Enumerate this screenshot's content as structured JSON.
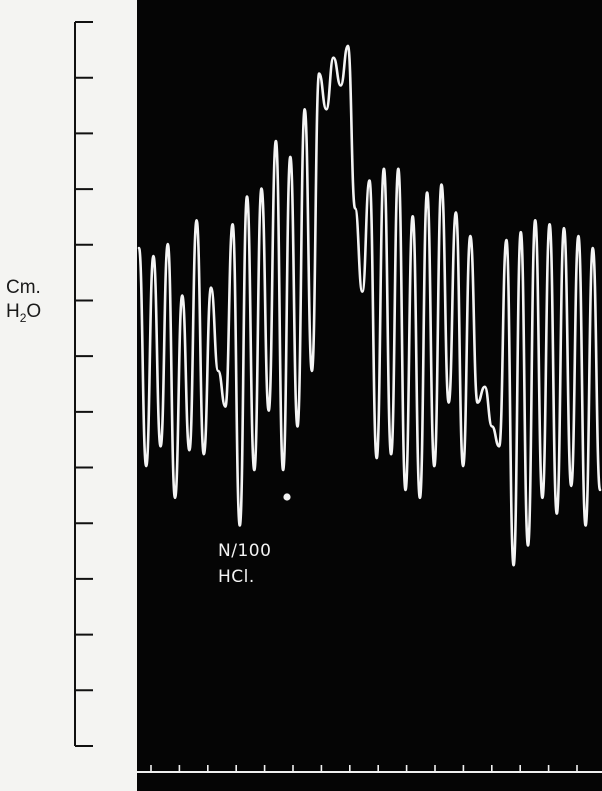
{
  "chart_data": {
    "type": "line",
    "title": "",
    "ylabel_main": "Cm.",
    "ylabel_chem": "H",
    "ylabel_sub": "2",
    "ylabel_tail": "O",
    "annotation": [
      "N/100",
      "HCl."
    ],
    "background_color": "#050505",
    "trace_color": "#f4f4f4",
    "grid": false,
    "y_tick_count": 14,
    "x_tick_count": 17,
    "series": [
      {
        "values": [
          6.5,
          1.0,
          6.3,
          1.5,
          6.6,
          0.2,
          5.3,
          1.4,
          7.2,
          1.3,
          5.5,
          3.4,
          2.5,
          7.1,
          -0.5,
          7.8,
          0.9,
          8.0,
          2.4,
          9.2,
          0.9,
          8.8,
          2.0,
          10.0,
          3.4,
          10.9,
          10.0,
          11.3,
          10.6,
          11.6,
          7.5,
          5.4,
          8.2,
          1.2,
          8.5,
          1.3,
          8.5,
          0.4,
          7.3,
          0.2,
          7.9,
          1.0,
          8.1,
          2.6,
          7.4,
          1.0,
          6.8,
          2.6,
          3.0,
          2.0,
          1.5,
          6.7,
          -1.5,
          6.9,
          -1.0,
          7.2,
          0.2,
          7.1,
          -0.2,
          7.0,
          0.5,
          6.8,
          -0.5,
          6.5,
          0.4
        ]
      }
    ]
  }
}
